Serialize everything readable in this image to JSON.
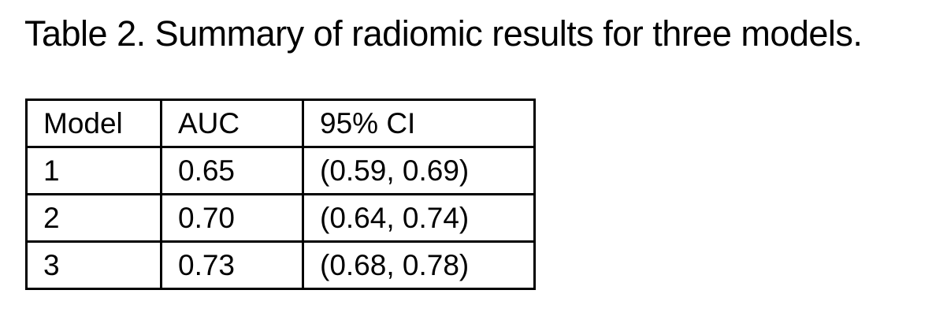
{
  "caption": "Table 2. Summary of radiomic results for three models.",
  "table": {
    "headers": [
      "Model",
      "AUC",
      "95% CI"
    ],
    "rows": [
      [
        "1",
        "0.65",
        "(0.59, 0.69)"
      ],
      [
        "2",
        "0.70",
        "(0.64, 0.74)"
      ],
      [
        "3",
        "0.73",
        "(0.68, 0.78)"
      ]
    ]
  },
  "colors": {
    "text": "#000000",
    "border": "#000000",
    "background": "#ffffff"
  }
}
